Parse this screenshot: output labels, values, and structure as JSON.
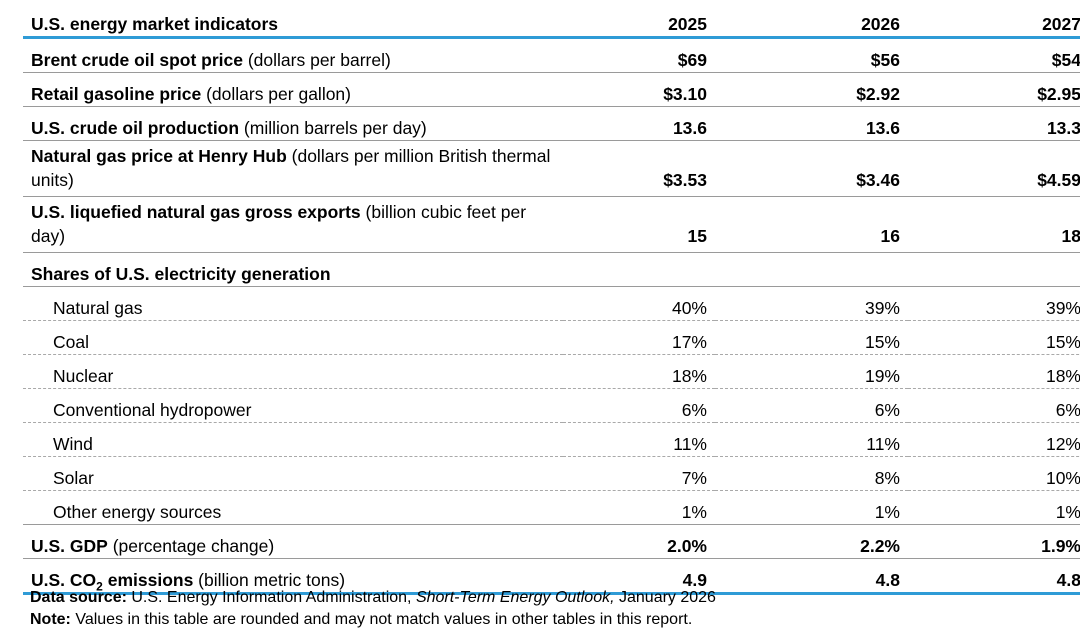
{
  "table": {
    "header": {
      "title": "U.S. energy market indicators",
      "years": [
        "2025",
        "2026",
        "2027"
      ]
    },
    "rows": {
      "brent": {
        "label_bold": "Brent crude oil spot price",
        "label_unit": " (dollars per barrel)",
        "values": [
          "$69",
          "$56",
          "$54"
        ]
      },
      "gasoline": {
        "label_bold": "Retail gasoline price",
        "label_unit": " (dollars per gallon)",
        "values": [
          "$3.10",
          "$2.92",
          "$2.95"
        ]
      },
      "crude_production": {
        "label_bold": "U.S. crude oil production",
        "label_unit": " (million barrels per day)",
        "values": [
          "13.6",
          "13.6",
          "13.3"
        ]
      },
      "henry_hub": {
        "label_bold": "Natural gas price at Henry Hub",
        "label_unit": " (dollars per million British thermal units)",
        "values": [
          "$3.53",
          "$3.46",
          "$4.59"
        ]
      },
      "lng_exports": {
        "label_bold": "U.S. liquefied natural gas gross exports",
        "label_unit": " (billion cubic feet per day)",
        "values": [
          "15",
          "16",
          "18"
        ]
      },
      "shares_heading": {
        "label_bold": "Shares of U.S. electricity generation"
      },
      "natural_gas": {
        "label": "Natural gas",
        "values": [
          "40%",
          "39%",
          "39%"
        ]
      },
      "coal": {
        "label": "Coal",
        "values": [
          "17%",
          "15%",
          "15%"
        ]
      },
      "nuclear": {
        "label": "Nuclear",
        "values": [
          "18%",
          "19%",
          "18%"
        ]
      },
      "hydro": {
        "label": "Conventional hydropower",
        "values": [
          "6%",
          "6%",
          "6%"
        ]
      },
      "wind": {
        "label": "Wind",
        "values": [
          "11%",
          "11%",
          "12%"
        ]
      },
      "solar": {
        "label": "Solar",
        "values": [
          "7%",
          "8%",
          "10%"
        ]
      },
      "other": {
        "label": "Other energy sources",
        "values": [
          "1%",
          "1%",
          "1%"
        ]
      },
      "gdp": {
        "label_bold": "U.S. GDP",
        "label_unit": " (percentage change)",
        "values": [
          "2.0%",
          "2.2%",
          "1.9%"
        ]
      },
      "co2": {
        "label_bold_pre": "U.S. CO",
        "label_sub": "2",
        "label_bold_post": " emissions",
        "label_unit": " (billion metric tons)",
        "values": [
          "4.9",
          "4.8",
          "4.8"
        ]
      }
    }
  },
  "footer": {
    "source_label": "Data source:",
    "source_text_pre": " U.S. Energy Information Administration, ",
    "source_title": "Short-Term Energy Outlook,",
    "source_text_post": " January 2026",
    "note_label": "Note:",
    "note_text": " Values in this table are rounded and may not match values in other tables in this report."
  }
}
